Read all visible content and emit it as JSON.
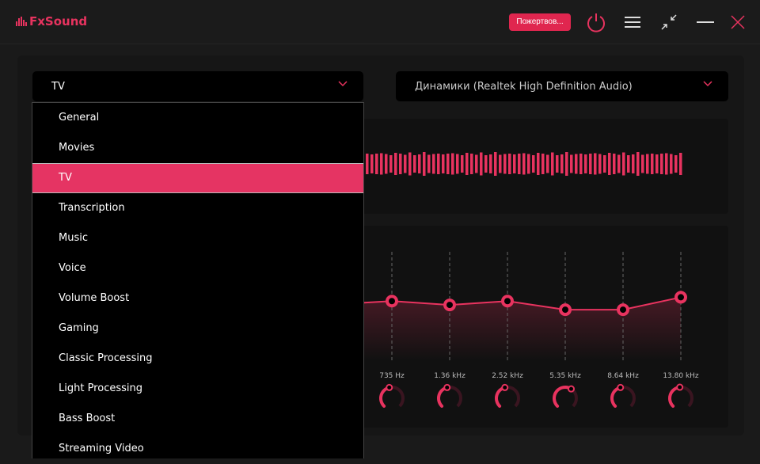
{
  "app": {
    "title": "FxSound",
    "accent": "#e8335f"
  },
  "titlebar": {
    "donate_label": "Пожертвов...",
    "icons": [
      "power-icon",
      "menu-icon",
      "collapse-icon",
      "minimize-icon",
      "close-icon"
    ]
  },
  "preset": {
    "selected": "TV",
    "options": [
      "General",
      "Movies",
      "TV",
      "Transcription",
      "Music",
      "Voice",
      "Volume Boost",
      "Gaming",
      "Classic Processing",
      "Light Processing",
      "Bass Boost",
      "Streaming Video"
    ]
  },
  "output": {
    "selected": "Динамики (Realtek High Definition Audio)"
  },
  "eq": {
    "bands": [
      {
        "label": "735 Hz",
        "level": 0.62,
        "knob": 0.45
      },
      {
        "label": "1.36 kHz",
        "level": 0.58,
        "knob": 0.45
      },
      {
        "label": "2.52 kHz",
        "level": 0.62,
        "knob": 0.45
      },
      {
        "label": "5.35 kHz",
        "level": 0.53,
        "knob": 0.62
      },
      {
        "label": "8.64 kHz",
        "level": 0.53,
        "knob": 0.45
      },
      {
        "label": "13.80 kHz",
        "level": 0.66,
        "knob": 0.48
      }
    ]
  }
}
